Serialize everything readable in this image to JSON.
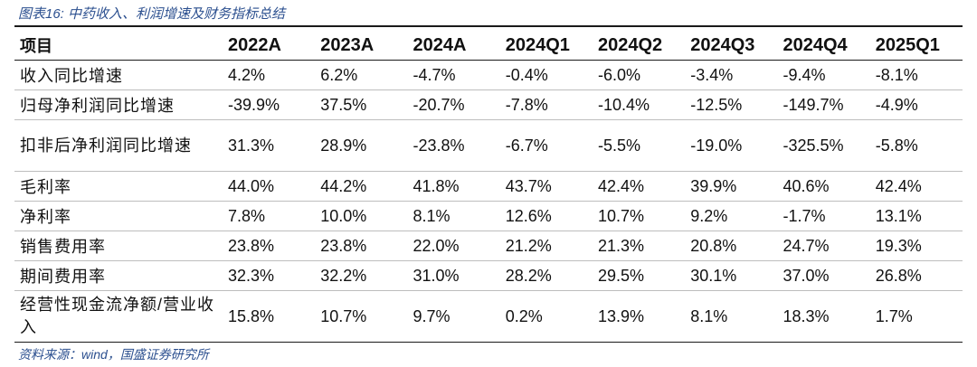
{
  "title": "图表16:  中药收入、利润增速及财务指标总结",
  "table": {
    "headers": [
      "项目",
      "2022A",
      "2023A",
      "2024A",
      "2024Q1",
      "2024Q2",
      "2024Q3",
      "2024Q4",
      "2025Q1"
    ],
    "rows": [
      {
        "label": "收入同比增速",
        "values": [
          "4.2%",
          "6.2%",
          "-4.7%",
          "-0.4%",
          "-6.0%",
          "-3.4%",
          "-9.4%",
          "-8.1%"
        ]
      },
      {
        "label": "归母净利润同比增速",
        "values": [
          "-39.9%",
          "37.5%",
          "-20.7%",
          "-7.8%",
          "-10.4%",
          "-12.5%",
          "-149.7%",
          "-4.9%"
        ]
      },
      {
        "label": "扣非后净利润同比增速",
        "values": [
          "31.3%",
          "28.9%",
          "-23.8%",
          "-6.7%",
          "-5.5%",
          "-19.0%",
          "-325.5%",
          "-5.8%"
        ]
      },
      {
        "label": "毛利率",
        "values": [
          "44.0%",
          "44.2%",
          "41.8%",
          "43.7%",
          "42.4%",
          "39.9%",
          "40.6%",
          "42.4%"
        ]
      },
      {
        "label": "净利率",
        "values": [
          "7.8%",
          "10.0%",
          "8.1%",
          "12.6%",
          "10.7%",
          "9.2%",
          "-1.7%",
          "13.1%"
        ]
      },
      {
        "label": "销售费用率",
        "values": [
          "23.8%",
          "23.8%",
          "22.0%",
          "21.2%",
          "21.3%",
          "20.8%",
          "24.7%",
          "19.3%"
        ]
      },
      {
        "label": "期间费用率",
        "values": [
          "32.3%",
          "32.2%",
          "31.0%",
          "28.2%",
          "29.5%",
          "30.1%",
          "37.0%",
          "26.8%"
        ]
      },
      {
        "label": "经营性现金流净额/营业收入",
        "values": [
          "15.8%",
          "10.7%",
          "9.7%",
          "0.2%",
          "13.9%",
          "8.1%",
          "18.3%",
          "1.7%"
        ]
      }
    ]
  },
  "source": "资料来源：wind，国盛证券研究所"
}
